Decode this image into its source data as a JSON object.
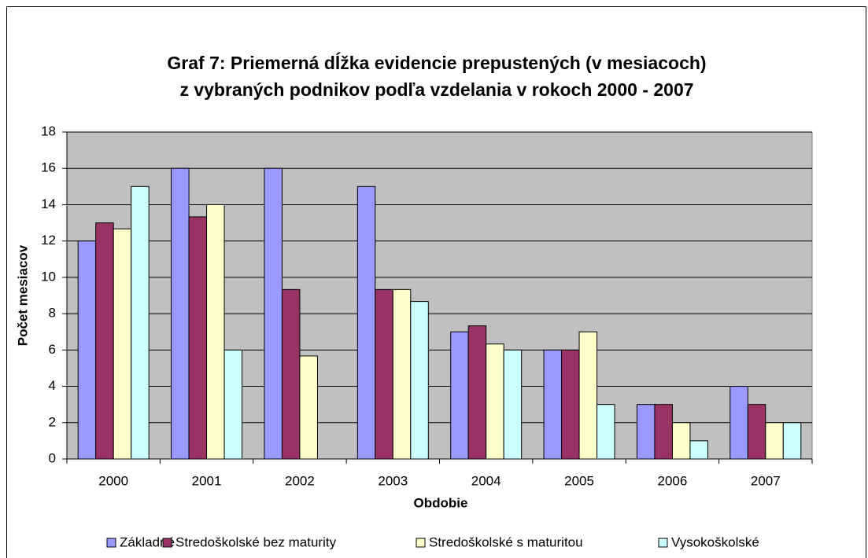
{
  "chart_data": {
    "type": "bar",
    "title": [
      "Graf 7: Priemerná dĺžka evidencie prepustených (v mesiacoch)",
      "z vybraných podnikov podľa vzdelania v rokoch 2000 - 2007"
    ],
    "x_label": "Obdobie",
    "y_label": "Počet mesiacov",
    "categories": [
      "2000",
      "2001",
      "2002",
      "2003",
      "2004",
      "2005",
      "2006",
      "2007"
    ],
    "series": [
      {
        "name": "Základné",
        "color": "#9999ff",
        "values": [
          12,
          16,
          16,
          15,
          7,
          6,
          3,
          4
        ]
      },
      {
        "name": "Stredoškolské bez maturity",
        "color": "#993366",
        "values": [
          13,
          13.33,
          9.33,
          9.33,
          7.33,
          6,
          3,
          3
        ]
      },
      {
        "name": "Stredoškolské s maturitou",
        "color": "#ffffcc",
        "values": [
          12.67,
          14,
          5.67,
          9.33,
          6.33,
          7,
          2,
          2
        ]
      },
      {
        "name": "Vysokoškolské",
        "color": "#ccffff",
        "values": [
          15,
          6,
          null,
          8.67,
          6,
          3,
          1,
          2
        ]
      }
    ],
    "ylim": [
      0,
      18
    ],
    "yticks": [
      0,
      2,
      4,
      6,
      8,
      10,
      12,
      14,
      16,
      18
    ],
    "grid": true,
    "legend": "bottom"
  }
}
